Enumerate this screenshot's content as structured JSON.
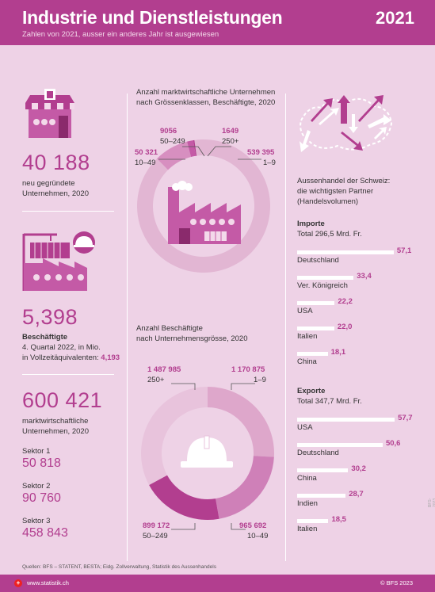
{
  "header": {
    "title": "Industrie und Dienstleistungen",
    "subtitle": "Zahlen von 2021, ausser ein anderes Jahr ist ausgewiesen",
    "year": "2021"
  },
  "left": {
    "new_companies": {
      "value": "40 188",
      "label1": "neu gegründete",
      "label2": "Unternehmen, 2020"
    },
    "employed": {
      "value": "5,398",
      "label_bold": "Beschäftigte",
      "label1": "4. Quartal 2022, in Mio.",
      "label2": "in Vollzeitäquivalenten:",
      "fte": "4,193"
    },
    "market_companies": {
      "value": "600 421",
      "label1": "marktwirtschaftliche",
      "label2": "Unternehmen, 2020"
    },
    "sectors": [
      {
        "label": "Sektor 1",
        "value": "50 818"
      },
      {
        "label": "Sektor 2",
        "value": "90 760"
      },
      {
        "label": "Sektor 3",
        "value": "458 843"
      }
    ]
  },
  "chart_data": [
    {
      "type": "pie",
      "title": "Anzahl marktwirtschaftliche Unternehmen nach Grössenklassen, Beschäftigte, 2020",
      "title_line1": "Anzahl marktwirtschaftliche Unternehmen",
      "title_line2": "nach Grössenklassen, Beschäftigte, 2020",
      "categories": [
        "1–9",
        "10–49",
        "50–249",
        "250+"
      ],
      "values": [
        539395,
        50321,
        9056,
        1649
      ],
      "labels": [
        "539 395",
        "50 321",
        "9056",
        "1649"
      ],
      "colors": [
        "#e2b6d3",
        "#d78fc0",
        "#c45aa6",
        "#b23e8f"
      ]
    },
    {
      "type": "pie",
      "title": "Anzahl Beschäftigte nach Unternehmensgrösse, 2020",
      "title_line1": "Anzahl Beschäftigte",
      "title_line2": "nach Unternehmensgrösse, 2020",
      "categories": [
        "1–9",
        "10–49",
        "50–249",
        "250+"
      ],
      "values": [
        1170875,
        965692,
        899172,
        1487985
      ],
      "labels": [
        "1 170 875",
        "965 692",
        "899 172",
        "1 487 985"
      ],
      "colors": [
        "#dea7cb",
        "#cf80b8",
        "#b23e8f",
        "#e8c3dc"
      ]
    },
    {
      "type": "bar",
      "title": "Importe",
      "subtitle": "Total 296,5 Mrd. Fr.",
      "categories": [
        "Deutschland",
        "Ver. Königreich",
        "USA",
        "Italien",
        "China"
      ],
      "values": [
        57.1,
        33.4,
        22.2,
        22.0,
        18.1
      ],
      "labels": [
        "57,1",
        "33,4",
        "22,2",
        "22,0",
        "18,1"
      ]
    },
    {
      "type": "bar",
      "title": "Exporte",
      "subtitle": "Total 347,7 Mrd. Fr.",
      "categories": [
        "USA",
        "Deutschland",
        "China",
        "Indien",
        "Italien"
      ],
      "values": [
        57.7,
        50.6,
        30.2,
        28.7,
        18.5
      ],
      "labels": [
        "57,7",
        "50,6",
        "30,2",
        "28,7",
        "18,5"
      ]
    }
  ],
  "right": {
    "trade_title1": "Aussenhandel der Schweiz:",
    "trade_title2": "die wichtigsten Partner",
    "trade_title3": "(Handelsvolumen)"
  },
  "footer": {
    "sources": "Quellen: BFS – STATENT, BESTA; Eidg. Zollverwaltung, Statistik des Aussenhandels",
    "url": "www.statistik.ch",
    "copyright": "© BFS 2023",
    "flag": "+",
    "side_note": "BFS-2023"
  },
  "colors": {
    "accent": "#b23e8f",
    "background": "#eed2e6"
  },
  "icons": [
    "shop-icon",
    "crane-icon",
    "factory-icon",
    "helmet-icon",
    "trade-map-icon"
  ]
}
